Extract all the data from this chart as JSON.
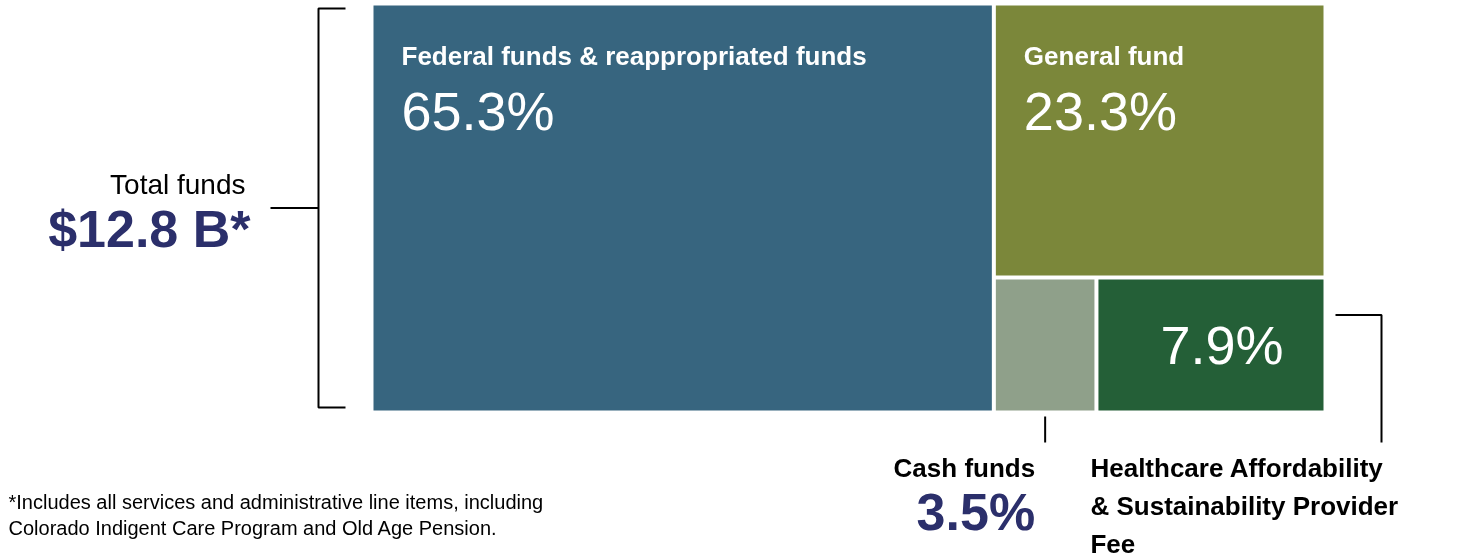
{
  "chart_data": {
    "type": "other",
    "categories": [
      "Federal funds & reappropriated funds",
      "General fund",
      "Cash funds",
      "Healthcare Affordability & Sustainability Provider Fee"
    ],
    "values": [
      65.3,
      23.3,
      3.5,
      7.9
    ],
    "value_labels": [
      "65.3%",
      "23.3%",
      "3.5%",
      "7.9%"
    ],
    "colors": [
      "#37657f",
      "#7b873a",
      "#8fa08a",
      "#245f37"
    ],
    "annotations": [
      "Total funds",
      "$12.8 B*",
      "*Includes all services and administrative line items, including Colorado Indigent Care Program and Old Age Pension."
    ]
  }
}
